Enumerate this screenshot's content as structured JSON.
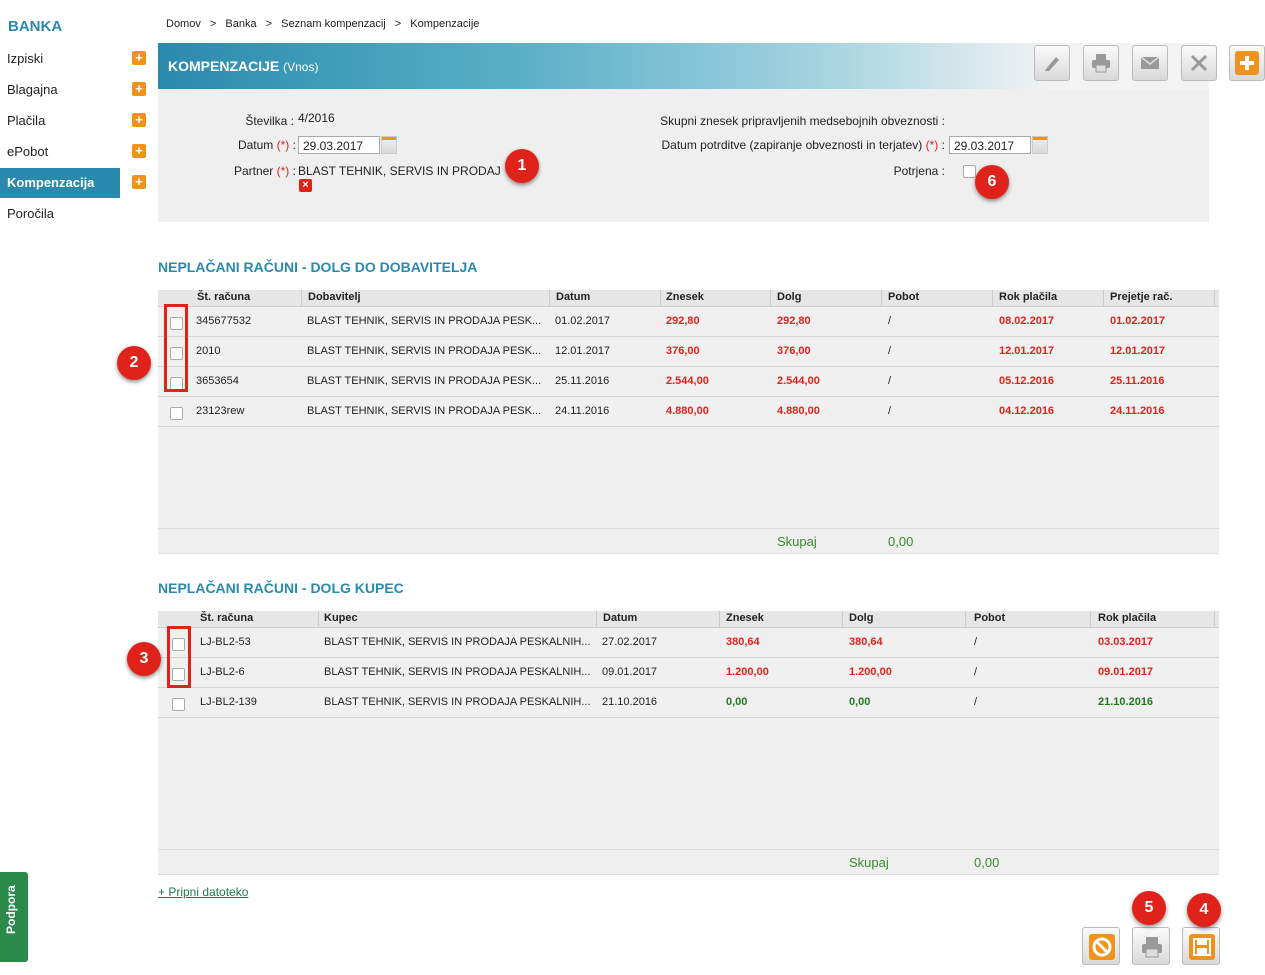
{
  "sidebar": {
    "title": "BANKA",
    "items": [
      {
        "label": "Izpiski"
      },
      {
        "label": "Blagajna"
      },
      {
        "label": "Plačila"
      },
      {
        "label": "ePobot"
      },
      {
        "label": "Kompenzacija"
      },
      {
        "label": "Poročila"
      }
    ]
  },
  "breadcrumb": [
    "Domov",
    ">",
    "Banka",
    ">",
    "Seznam kompenzacij",
    ">",
    "Kompenzacije"
  ],
  "header": {
    "title": "KOMPENZACIJE",
    "subtitle": "(Vnos)"
  },
  "toolbar_icons": [
    "edit-icon",
    "print-icon",
    "mail-icon",
    "close-icon",
    "add-icon"
  ],
  "form": {
    "stevilka_label": "Številka :",
    "stevilka_value": "4/2016",
    "datum_label": "Datum",
    "req_mark": "(*)",
    "colon": ":",
    "datum_value": "29.03.2017",
    "partner_label": "Partner",
    "partner_value": "BLAST TEHNIK, SERVIS IN PRODAJ",
    "skupni_label": "Skupni znesek pripravljenih medsebojnih obveznosti :",
    "potrditev_label": "Datum potrditve (zapiranje obveznosti in terjatev)",
    "potrditev_value": "29.03.2017",
    "potrjena_label": "Potrjena :"
  },
  "badges": [
    "1",
    "2",
    "3",
    "4",
    "5",
    "6"
  ],
  "supplier_section": {
    "title": "NEPLAČANI RAČUNI - DOLG DO DOBAVITELJA",
    "columns": [
      "Št. računa",
      "Dobavitelj",
      "Datum",
      "Znesek",
      "Dolg",
      "Pobot",
      "Rok plačila",
      "Prejetje rač."
    ],
    "rows": [
      {
        "st": "345677532",
        "partner": "BLAST TEHNIK, SERVIS IN PRODAJA PESK...",
        "datum": "01.02.2017",
        "znesek": "292,80",
        "dolg": "292,80",
        "pobot": "/",
        "rok": "08.02.2017",
        "prejetje": "01.02.2017"
      },
      {
        "st": "2010",
        "partner": "BLAST TEHNIK, SERVIS IN PRODAJA PESK...",
        "datum": "12.01.2017",
        "znesek": "376,00",
        "dolg": "376,00",
        "pobot": "/",
        "rok": "12.01.2017",
        "prejetje": "12.01.2017"
      },
      {
        "st": "3653654",
        "partner": "BLAST TEHNIK, SERVIS IN PRODAJA PESK...",
        "datum": "25.11.2016",
        "znesek": "2.544,00",
        "dolg": "2.544,00",
        "pobot": "/",
        "rok": "05.12.2016",
        "prejetje": "25.11.2016"
      },
      {
        "st": "23123rew",
        "partner": "BLAST TEHNIK, SERVIS IN PRODAJA PESK...",
        "datum": "24.11.2016",
        "znesek": "4.880,00",
        "dolg": "4.880,00",
        "pobot": "/",
        "rok": "04.12.2016",
        "prejetje": "24.11.2016"
      }
    ],
    "sum_label": "Skupaj",
    "sum_value": "0,00"
  },
  "customer_section": {
    "title": "NEPLAČANI RAČUNI - DOLG KUPEC",
    "columns": [
      "Št. računa",
      "Kupec",
      "Datum",
      "Znesek",
      "Dolg",
      "Pobot",
      "Rok plačila"
    ],
    "rows": [
      {
        "st": "LJ-BL2-53",
        "partner": "BLAST TEHNIK, SERVIS IN PRODAJA PESKALNIH...",
        "datum": "27.02.2017",
        "znesek": "380,64",
        "dolg": "380,64",
        "pobot": "/",
        "rok": "03.03.2017"
      },
      {
        "st": "LJ-BL2-6",
        "partner": "BLAST TEHNIK, SERVIS IN PRODAJA PESKALNIH...",
        "datum": "09.01.2017",
        "znesek": "1.200,00",
        "dolg": "1.200,00",
        "pobot": "/",
        "rok": "09.01.2017"
      },
      {
        "st": "LJ-BL2-139",
        "partner": "BLAST TEHNIK, SERVIS IN PRODAJA PESKALNIH...",
        "datum": "21.10.2016",
        "znesek": "0,00",
        "dolg": "0,00",
        "pobot": "/",
        "rok": "21.10.2016"
      }
    ],
    "sum_label": "Skupaj",
    "sum_value": "0,00"
  },
  "attach_link": "+ Pripni datoteko",
  "support_tab": "Podpora",
  "colors": {
    "accent": "#2a8aad",
    "orange": "#f0931c",
    "red": "#e0231a",
    "green": "#1f7a1f"
  }
}
